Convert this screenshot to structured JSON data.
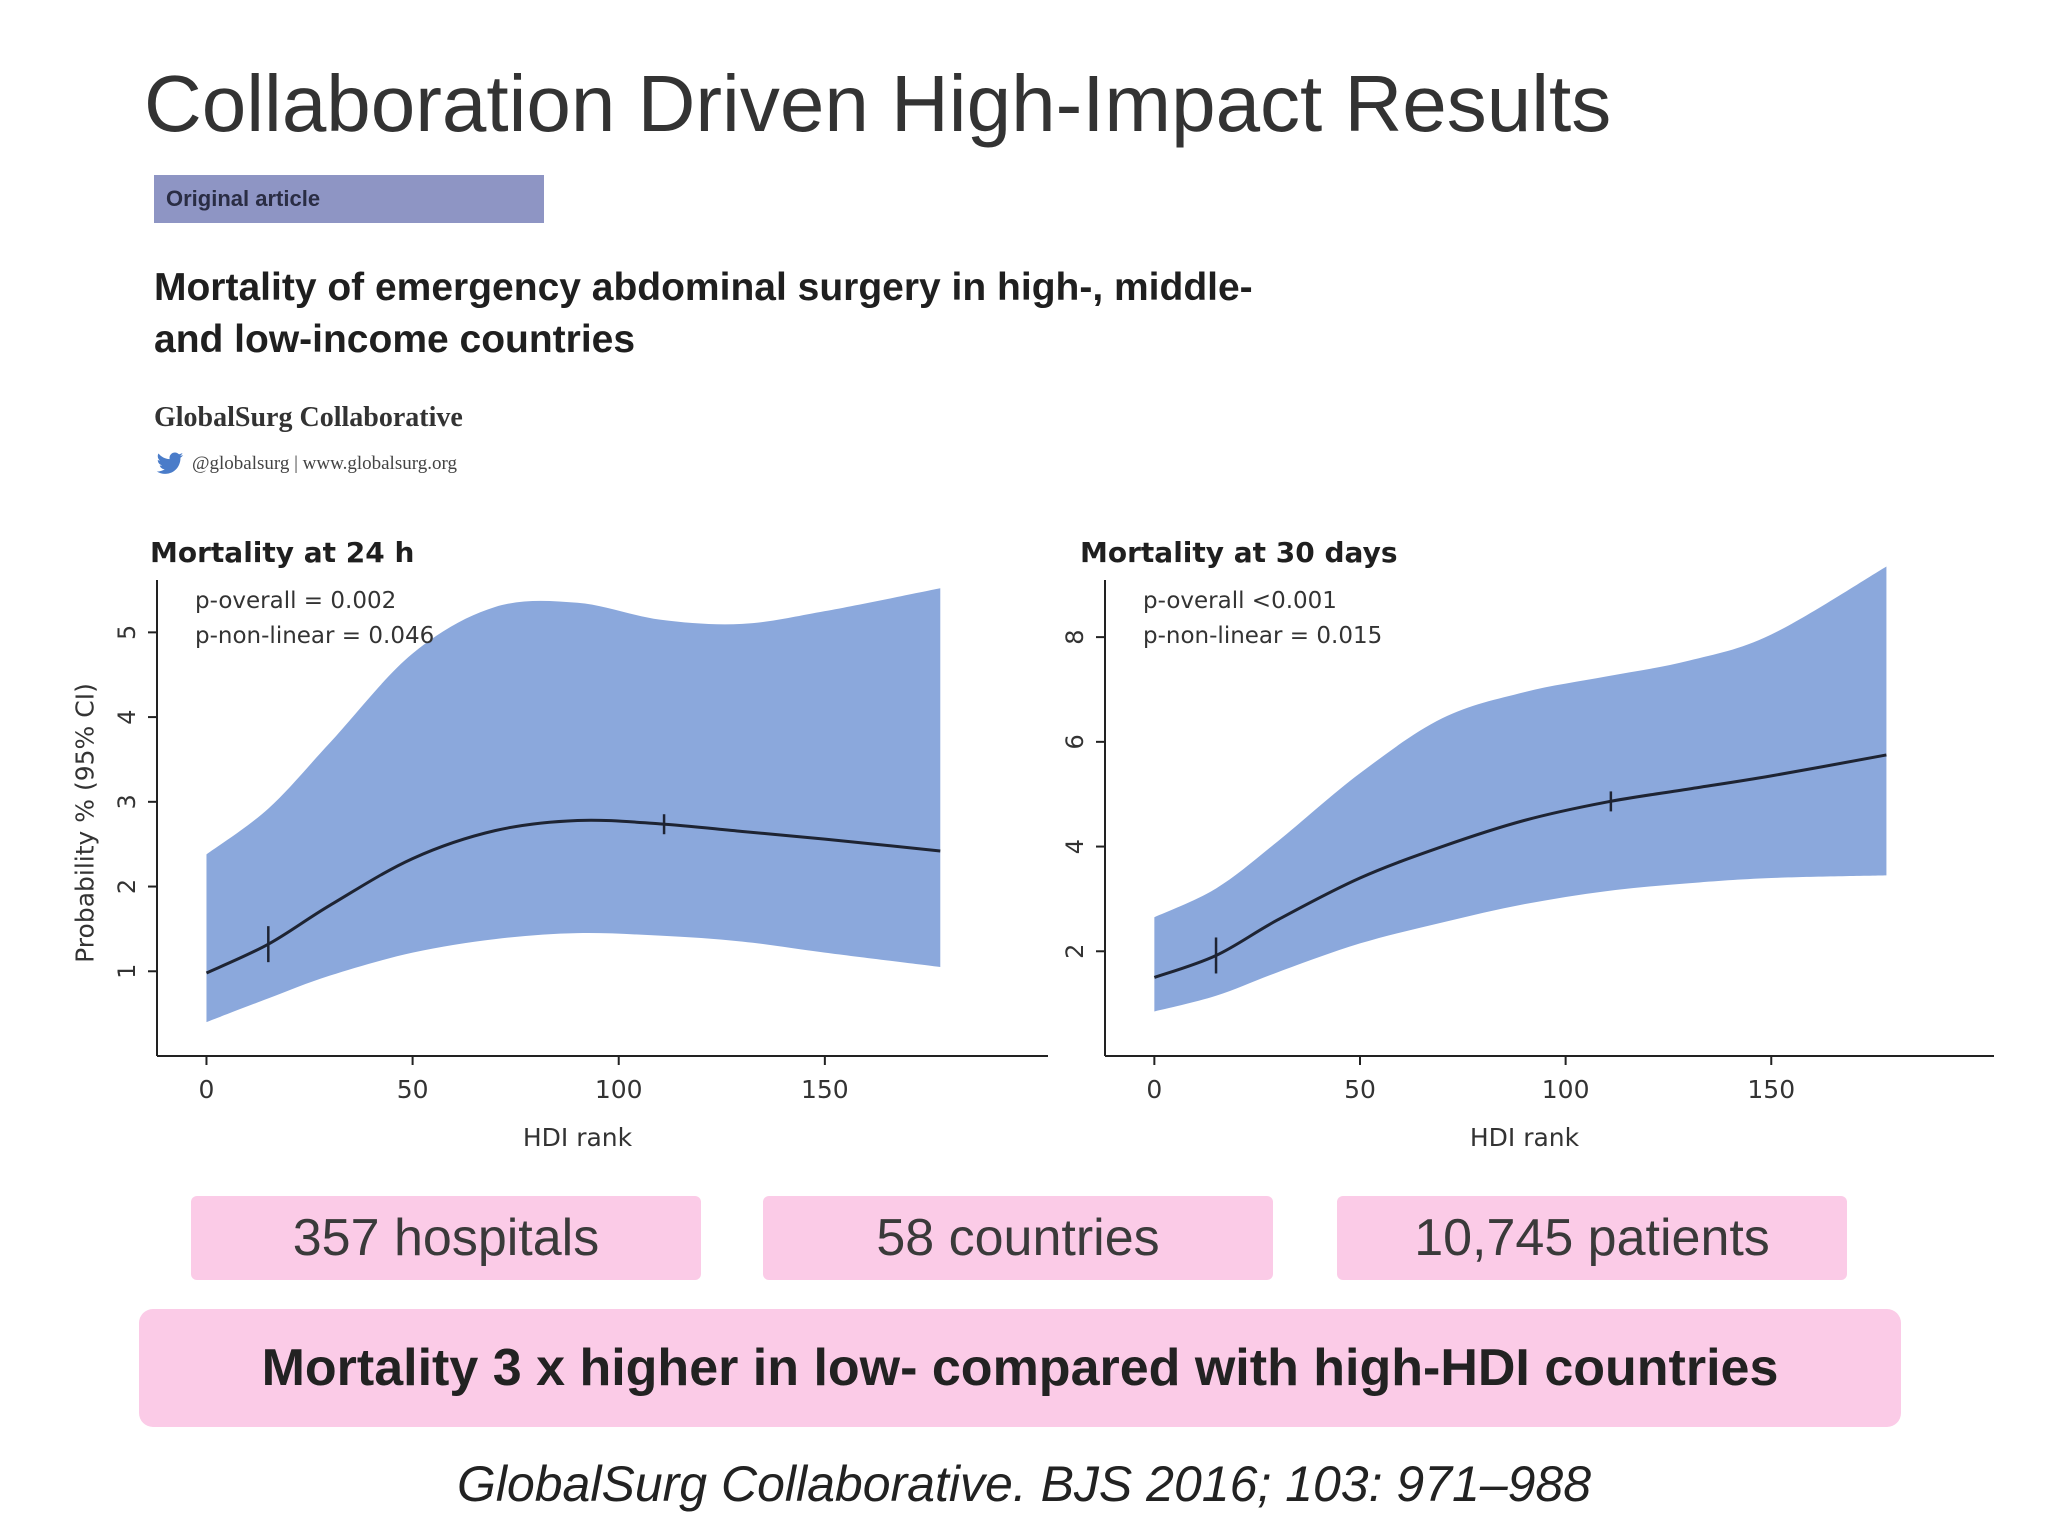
{
  "slide": {
    "title": "Collaboration Driven High-Impact Results",
    "article_badge": "Original article",
    "article_title_line1": "Mortality of emergency abdominal surgery in high-, middle-",
    "article_title_line2": "and low-income countries",
    "authors": "GlobalSurg Collaborative",
    "social": "@globalsurg | www.globalsurg.org",
    "stats": [
      "357 hospitals",
      "58 countries",
      "10,745 patients"
    ],
    "conclusion": "Mortality 3 x higher in low- compared with high-HDI countries",
    "citation": "GlobalSurg Collaborative. BJS 2016; 103: 971–988"
  },
  "colors": {
    "band": "#8ba8dc",
    "line": "#1e2433",
    "stat_bg": "#fbcbe7",
    "badge_bg": "#8e95c4"
  },
  "chart_data": [
    {
      "type": "line",
      "title": "Mortality at 24 h",
      "xlabel": "HDI rank",
      "ylabel": "Probability % (95% CI)",
      "xlim": [
        -12,
        192
      ],
      "ylim": [
        0,
        5.5
      ],
      "xticks": [
        0,
        50,
        100,
        150
      ],
      "yticks": [
        1,
        2,
        3,
        4,
        5
      ],
      "annotations": [
        "p-overall = 0.002",
        "p-non-linear = 0.046"
      ],
      "x": [
        0,
        15,
        30,
        50,
        70,
        90,
        110,
        130,
        150,
        178
      ],
      "y": [
        0.98,
        1.32,
        1.78,
        2.33,
        2.66,
        2.78,
        2.74,
        2.65,
        2.56,
        2.42
      ],
      "ci_lower": [
        0.4,
        0.68,
        0.95,
        1.22,
        1.38,
        1.45,
        1.42,
        1.35,
        1.22,
        1.05
      ],
      "ci_upper": [
        2.38,
        2.92,
        3.7,
        4.75,
        5.3,
        5.35,
        5.15,
        5.1,
        5.25,
        5.52
      ],
      "knots": [
        15,
        111
      ],
      "grid": false
    },
    {
      "type": "line",
      "title": "Mortality at 30 days",
      "xlabel": "HDI rank",
      "ylabel": "",
      "xlim": [
        -12,
        192
      ],
      "ylim": [
        0,
        8.9
      ],
      "xticks": [
        0,
        50,
        100,
        150
      ],
      "yticks": [
        2,
        4,
        6,
        8
      ],
      "annotations": [
        "p-overall <0.001",
        "p-non-linear = 0.015"
      ],
      "x": [
        0,
        15,
        30,
        50,
        70,
        90,
        110,
        130,
        150,
        178
      ],
      "y": [
        1.5,
        1.92,
        2.6,
        3.4,
        4.0,
        4.5,
        4.85,
        5.1,
        5.35,
        5.75
      ],
      "ci_lower": [
        0.85,
        1.15,
        1.6,
        2.15,
        2.55,
        2.9,
        3.15,
        3.3,
        3.4,
        3.45
      ],
      "ci_upper": [
        2.65,
        3.2,
        4.1,
        5.4,
        6.45,
        6.95,
        7.25,
        7.55,
        8.05,
        9.35
      ],
      "knots": [
        15,
        111
      ],
      "grid": false
    }
  ]
}
